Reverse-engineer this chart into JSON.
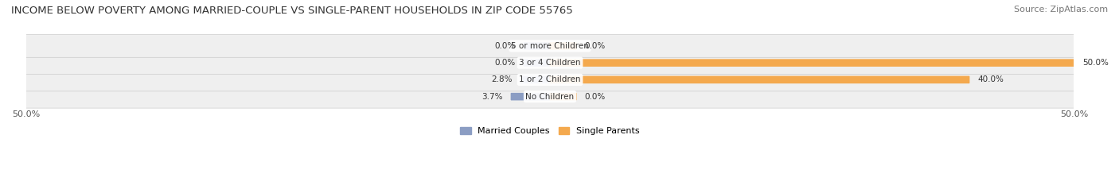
{
  "title": "INCOME BELOW POVERTY AMONG MARRIED-COUPLE VS SINGLE-PARENT HOUSEHOLDS IN ZIP CODE 55765",
  "source": "Source: ZipAtlas.com",
  "categories": [
    "No Children",
    "1 or 2 Children",
    "3 or 4 Children",
    "5 or more Children"
  ],
  "married_values": [
    3.7,
    2.8,
    0.0,
    0.0
  ],
  "single_values": [
    0.0,
    40.0,
    50.0,
    0.0
  ],
  "married_color": "#8B9DC3",
  "single_color": "#F4A94E",
  "row_bg_color": "#EFEFEF",
  "axis_limit": 50.0,
  "title_fontsize": 9.5,
  "source_fontsize": 8,
  "label_fontsize": 7.5,
  "category_fontsize": 7.5,
  "legend_fontsize": 8,
  "axis_label_fontsize": 8,
  "background_color": "#FFFFFF"
}
